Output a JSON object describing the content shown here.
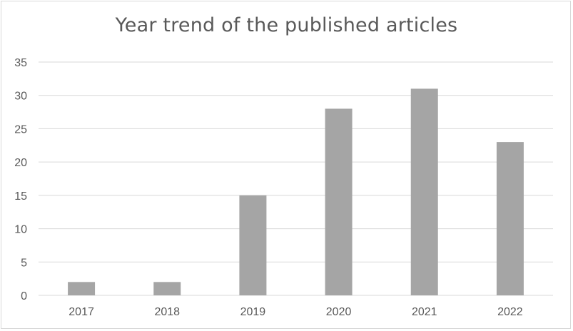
{
  "chart_data": {
    "type": "bar",
    "title": "Year trend of the published articles",
    "categories": [
      "2017",
      "2018",
      "2019",
      "2020",
      "2021",
      "2022"
    ],
    "values": [
      2,
      2,
      15,
      28,
      31,
      23
    ],
    "yticks": [
      "0",
      "5",
      "10",
      "15",
      "20",
      "25",
      "30",
      "35"
    ],
    "ylim": [
      0,
      35
    ],
    "grid": true,
    "legend": "none",
    "bar_color": "#a5a5a5",
    "grid_color": "#d9d9d9"
  }
}
